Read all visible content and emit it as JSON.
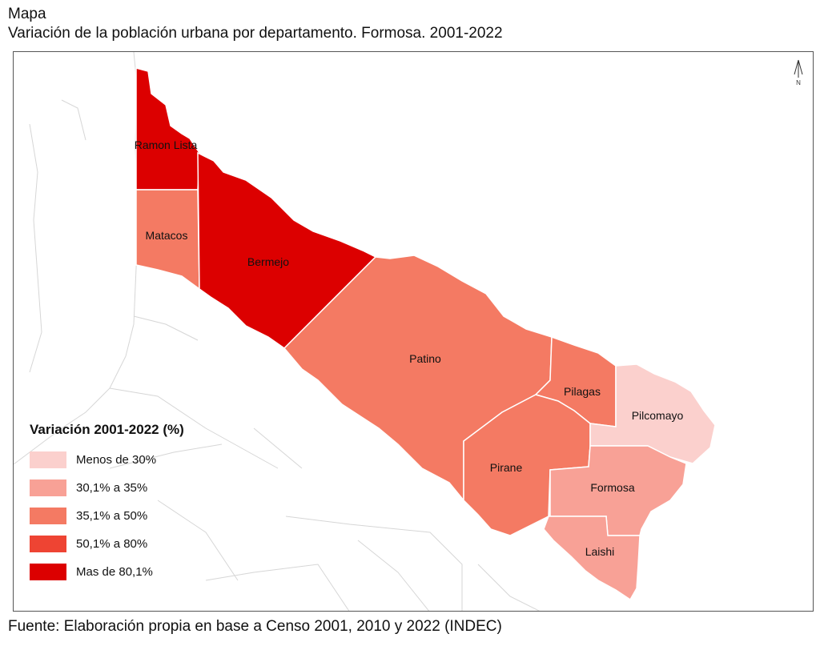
{
  "header": {
    "label": "Mapa",
    "title": "Variación de la población urbana por departamento. Formosa. 2001-2022"
  },
  "map": {
    "north_arrow": "N",
    "departments": [
      {
        "name": "Ramon Lista",
        "category": "Mas de 80,1%",
        "color": "#dc0000"
      },
      {
        "name": "Matacos",
        "category": "35,1% a 50%",
        "color": "#f47a63"
      },
      {
        "name": "Bermejo",
        "category": "Mas de 80,1%",
        "color": "#dc0000"
      },
      {
        "name": "Patino",
        "category": "35,1% a 50%",
        "color": "#f47a63"
      },
      {
        "name": "Pilagas",
        "category": "35,1% a 50%",
        "color": "#f47a63"
      },
      {
        "name": "Pilcomayo",
        "category": "Menos de 30%",
        "color": "#fbd0cd"
      },
      {
        "name": "Pirane",
        "category": "35,1% a 50%",
        "color": "#f47a63"
      },
      {
        "name": "Formosa",
        "category": "30,1% a 35%",
        "color": "#f8a196"
      },
      {
        "name": "Laishi",
        "category": "30,1% a 35%",
        "color": "#f8a196"
      }
    ]
  },
  "legend": {
    "title": "Variación 2001-2022 (%)",
    "items": [
      {
        "label": "Menos de 30%",
        "color": "#fbd0cd"
      },
      {
        "label": "30,1% a 35%",
        "color": "#f8a196"
      },
      {
        "label": "35,1% a 50%",
        "color": "#f47a63"
      },
      {
        "label": "50,1% a 80%",
        "color": "#ee4433"
      },
      {
        "label": "Mas de 80,1%",
        "color": "#dc0000"
      }
    ]
  },
  "source": "Fuente: Elaboración propia en base a Censo 2001, 2010 y 2022 (INDEC)"
}
